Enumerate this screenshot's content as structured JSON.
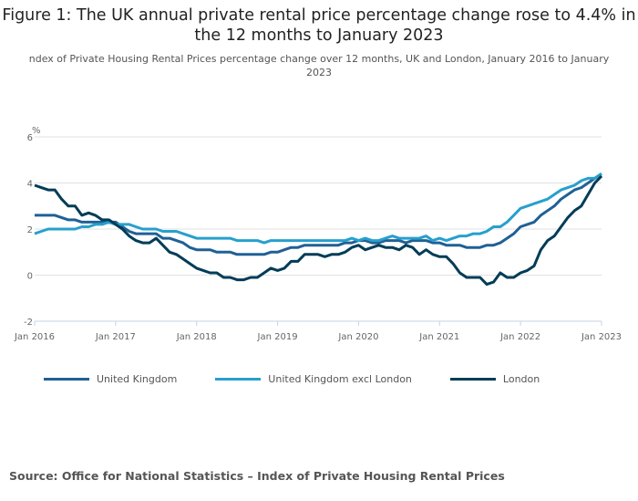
{
  "chart_data": {
    "type": "line",
    "title": "Figure 1: The UK annual private rental price percentage change rose to 4.4% in the 12 months to January 2023",
    "subtitle": "ndex of Private Housing Rental Prices percentage change over 12 months, UK and London, January 2016 to January 2023",
    "ylabel": "%",
    "xlabel": "",
    "ylim": [
      -2,
      6
    ],
    "yticks": [
      "6",
      "4",
      "2",
      "0",
      "-2"
    ],
    "xticks": [
      "Jan 2016",
      "Jan 2017",
      "Jan 2018",
      "Jan 2019",
      "Jan 2020",
      "Jan 2021",
      "Jan 2022",
      "Jan 2023"
    ],
    "x_start": "Jan 2016",
    "x_end": "Jan 2023",
    "x_frequency": "monthly",
    "grid": true,
    "legend_position": "bottom",
    "series": [
      {
        "name": "United Kingdom",
        "color": "#206095",
        "values": [
          2.6,
          2.6,
          2.6,
          2.6,
          2.5,
          2.4,
          2.4,
          2.3,
          2.3,
          2.3,
          2.3,
          2.3,
          2.3,
          2.1,
          1.9,
          1.8,
          1.8,
          1.8,
          1.8,
          1.6,
          1.6,
          1.5,
          1.4,
          1.2,
          1.1,
          1.1,
          1.1,
          1.0,
          1.0,
          1.0,
          0.9,
          0.9,
          0.9,
          0.9,
          0.9,
          1.0,
          1.0,
          1.1,
          1.2,
          1.2,
          1.3,
          1.3,
          1.3,
          1.3,
          1.3,
          1.3,
          1.4,
          1.4,
          1.5,
          1.5,
          1.4,
          1.4,
          1.5,
          1.5,
          1.5,
          1.4,
          1.5,
          1.5,
          1.5,
          1.4,
          1.4,
          1.3,
          1.3,
          1.3,
          1.2,
          1.2,
          1.2,
          1.3,
          1.3,
          1.4,
          1.6,
          1.8,
          2.1,
          2.2,
          2.3,
          2.6,
          2.8,
          3.0,
          3.3,
          3.5,
          3.7,
          3.8,
          4.0,
          4.2,
          4.4
        ]
      },
      {
        "name": "United Kingdom excl London",
        "color": "#27a0cc",
        "values": [
          1.8,
          1.9,
          2.0,
          2.0,
          2.0,
          2.0,
          2.0,
          2.1,
          2.1,
          2.2,
          2.2,
          2.3,
          2.2,
          2.2,
          2.2,
          2.1,
          2.0,
          2.0,
          2.0,
          1.9,
          1.9,
          1.9,
          1.8,
          1.7,
          1.6,
          1.6,
          1.6,
          1.6,
          1.6,
          1.6,
          1.5,
          1.5,
          1.5,
          1.5,
          1.4,
          1.5,
          1.5,
          1.5,
          1.5,
          1.5,
          1.5,
          1.5,
          1.5,
          1.5,
          1.5,
          1.5,
          1.5,
          1.6,
          1.5,
          1.6,
          1.5,
          1.5,
          1.6,
          1.7,
          1.6,
          1.6,
          1.6,
          1.6,
          1.7,
          1.5,
          1.6,
          1.5,
          1.6,
          1.7,
          1.7,
          1.8,
          1.8,
          1.9,
          2.1,
          2.1,
          2.3,
          2.6,
          2.9,
          3.0,
          3.1,
          3.2,
          3.3,
          3.5,
          3.7,
          3.8,
          3.9,
          4.1,
          4.2,
          4.2,
          4.4
        ]
      },
      {
        "name": "London",
        "color": "#003c57",
        "values": [
          3.9,
          3.8,
          3.7,
          3.7,
          3.3,
          3.0,
          3.0,
          2.6,
          2.7,
          2.6,
          2.4,
          2.4,
          2.2,
          2.0,
          1.7,
          1.5,
          1.4,
          1.4,
          1.6,
          1.3,
          1.0,
          0.9,
          0.7,
          0.5,
          0.3,
          0.2,
          0.1,
          0.1,
          -0.1,
          -0.1,
          -0.2,
          -0.2,
          -0.1,
          -0.1,
          0.1,
          0.3,
          0.2,
          0.3,
          0.6,
          0.6,
          0.9,
          0.9,
          0.9,
          0.8,
          0.9,
          0.9,
          1.0,
          1.2,
          1.3,
          1.1,
          1.2,
          1.3,
          1.2,
          1.2,
          1.1,
          1.3,
          1.2,
          0.9,
          1.1,
          0.9,
          0.8,
          0.8,
          0.5,
          0.1,
          -0.1,
          -0.1,
          -0.1,
          -0.4,
          -0.3,
          0.1,
          -0.1,
          -0.1,
          0.1,
          0.2,
          0.4,
          1.1,
          1.5,
          1.7,
          2.1,
          2.5,
          2.8,
          3.0,
          3.5,
          4.0,
          4.3
        ]
      }
    ]
  },
  "source": "Source: Office for National Statistics – Index of Private Housing Rental Prices"
}
